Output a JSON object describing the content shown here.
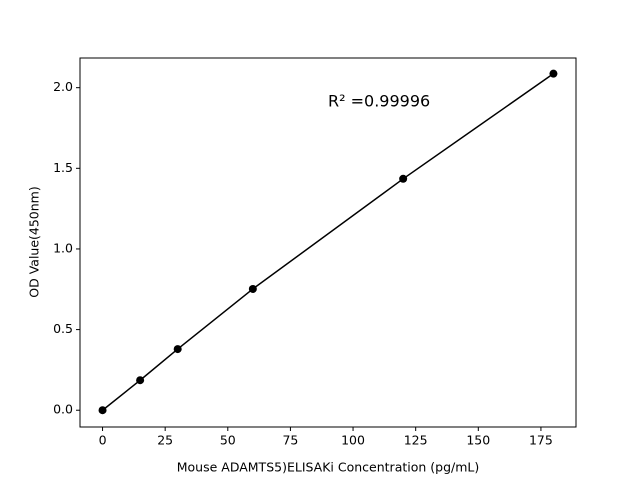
{
  "chart_data": {
    "type": "line",
    "x_label": "Mouse ADAMTS5)ELISAKi Concentration (pg/mL)",
    "y_label": "OD Value(450nm)",
    "annotation": "R² =0.99996",
    "x": [
      0,
      15,
      30,
      60,
      120,
      180
    ],
    "series": [
      {
        "color": "#000000",
        "values": [
          0,
          0.186,
          0.379,
          0.752,
          1.435,
          2.087
        ]
      }
    ],
    "xlim": [
      -9,
      189
    ],
    "ylim": [
      -0.104,
      2.184
    ],
    "xticks": [
      0,
      25,
      50,
      75,
      100,
      125,
      150,
      175
    ],
    "yticks": [
      {
        "value": 0,
        "label": "0.0"
      },
      {
        "value": 0.5,
        "label": "0.5"
      },
      {
        "value": 1,
        "label": "1.0"
      },
      {
        "value": 1.5,
        "label": "1.5"
      },
      {
        "value": 2,
        "label": "2.0"
      }
    ]
  }
}
